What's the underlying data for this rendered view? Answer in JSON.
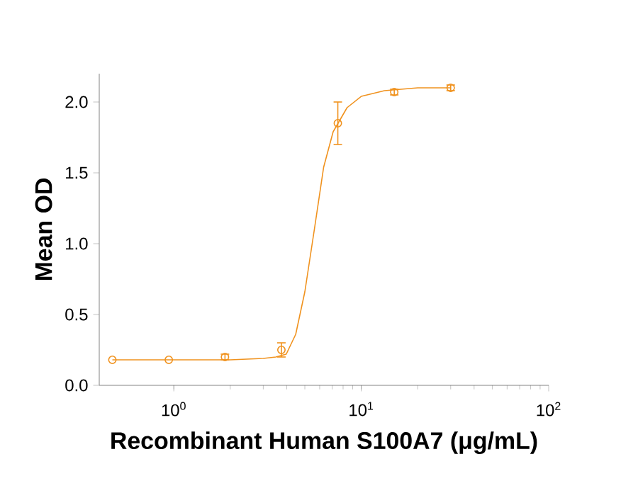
{
  "chart_data": {
    "type": "scatter",
    "xlabel": "Recombinant Human S100A7 (μg/mL)",
    "ylabel": "Mean OD",
    "log": "x",
    "grid": false,
    "xlim": [
      0.4,
      100
    ],
    "ylim": [
      0,
      2.2
    ],
    "xticks": [
      {
        "value": 1,
        "label": "10$^{0}$"
      },
      {
        "value": 10,
        "label": "10$^{1}$"
      },
      {
        "value": 100,
        "label": "10$^{2}$"
      }
    ],
    "yticks": [
      {
        "value": 0,
        "label": "0.0"
      },
      0.5,
      {
        "value": 1,
        "label": "1.0"
      },
      1.5,
      {
        "value": 2,
        "label": "2.0"
      }
    ],
    "series": [
      {
        "marker": "circle",
        "color": "#f0921e",
        "x": [
          0.47,
          0.94,
          1.875,
          3.75,
          7.5,
          15,
          30
        ],
        "values": [
          0.18,
          0.18,
          0.2,
          0.25,
          1.85,
          2.07,
          2.1
        ],
        "errors": [
          null,
          null,
          0.02,
          0.05,
          0.15,
          0.02,
          0.02
        ]
      },
      {
        "type": "line",
        "marker": "none",
        "color": "#f0921e",
        "x": [
          0.47,
          1,
          2,
          3,
          3.5,
          3.98,
          4.47,
          5.0,
          5.62,
          6.3,
          7.08,
          8.4,
          10,
          13.3,
          20,
          30
        ],
        "values": [
          0.18,
          0.18,
          0.18,
          0.19,
          0.2,
          0.22,
          0.36,
          0.66,
          1.1,
          1.54,
          1.79,
          1.96,
          2.04,
          2.08,
          2.1,
          2.1
        ]
      }
    ]
  }
}
